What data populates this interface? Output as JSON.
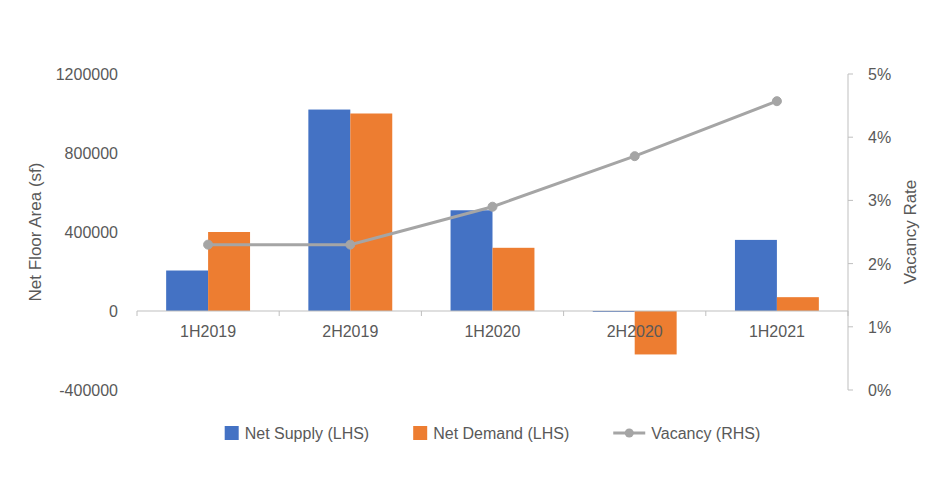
{
  "chart_data": {
    "type": "bar",
    "categories": [
      "1H2019",
      "2H2019",
      "1H2020",
      "2H2020",
      "1H2021"
    ],
    "series": [
      {
        "name": "Net Supply (LHS)",
        "color": "#4472c4",
        "values": [
          205000,
          1020000,
          510000,
          -5000,
          360000
        ]
      },
      {
        "name": "Net Demand (LHS)",
        "color": "#ed7d31",
        "values": [
          400000,
          1000000,
          320000,
          -220000,
          70000
        ]
      },
      {
        "name": "Vacancy (RHS)",
        "type": "line",
        "axis": "y2",
        "color": "#a5a5a5",
        "marker": "circle",
        "values": [
          2.3,
          2.3,
          2.9,
          3.7,
          4.57
        ]
      }
    ],
    "y_label": "Net Floor Area (sf)",
    "y2_label": "Vacancy Rate",
    "ylim": [
      -400000,
      1200000
    ],
    "yticks": [
      -400000,
      0,
      400000,
      800000,
      1200000
    ],
    "y2lim": [
      0,
      5
    ],
    "y2ticks": [
      {
        "value": 0,
        "label": "0%"
      },
      {
        "value": 1,
        "label": "1%"
      },
      {
        "value": 2,
        "label": "2%"
      },
      {
        "value": 3,
        "label": "3%"
      },
      {
        "value": 4,
        "label": "4%"
      },
      {
        "value": 5,
        "label": "5%"
      }
    ],
    "legend": "bottom",
    "grid": false
  }
}
